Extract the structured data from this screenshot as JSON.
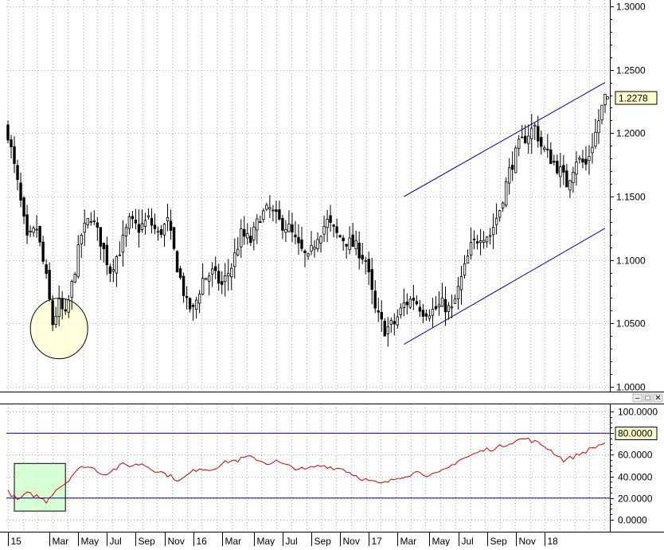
{
  "colors": {
    "background": "#ffffff",
    "grid": "#b9b9b9",
    "axis": "#000000",
    "candle_up_fill": "#ffffff",
    "candle_down_fill": "#000000",
    "candle_stroke": "#000000",
    "channel": "#0000aa",
    "rsi_line": "#cc0000",
    "rsi_levels": "#0000aa",
    "price_label_bg": "#ffffcc",
    "ellipse_fill": "#ffffcc",
    "rect_fill": "#ccffcc"
  },
  "pane_controls": [
    "–",
    "□",
    "✕"
  ],
  "chart_data": [
    {
      "type": "candlestick",
      "name": "price",
      "ylim": [
        1.0,
        1.3
      ],
      "y_ticks": [
        "1.3000",
        "1.2500",
        "1.2000",
        "1.1500",
        "1.1000",
        "1.0500",
        "1.0000"
      ],
      "y_tick_values": [
        1.3,
        1.25,
        1.2,
        1.15,
        1.1,
        1.05,
        1.0
      ],
      "last_price_label": "1.2278",
      "last_price": 1.2278,
      "grid": true,
      "anchors": [
        [
          0,
          1.2
        ],
        [
          3,
          1.16
        ],
        [
          6,
          1.115
        ],
        [
          9,
          1.125
        ],
        [
          12,
          1.085
        ],
        [
          14,
          1.05
        ],
        [
          16,
          1.065
        ],
        [
          18,
          1.055
        ],
        [
          20,
          1.08
        ],
        [
          23,
          1.12
        ],
        [
          26,
          1.135
        ],
        [
          29,
          1.115
        ],
        [
          32,
          1.092
        ],
        [
          35,
          1.108
        ],
        [
          38,
          1.13
        ],
        [
          41,
          1.125
        ],
        [
          44,
          1.132
        ],
        [
          47,
          1.12
        ],
        [
          50,
          1.13
        ],
        [
          53,
          1.095
        ],
        [
          56,
          1.065
        ],
        [
          58,
          1.06
        ],
        [
          61,
          1.085
        ],
        [
          64,
          1.09
        ],
        [
          67,
          1.08
        ],
        [
          70,
          1.095
        ],
        [
          73,
          1.12
        ],
        [
          76,
          1.115
        ],
        [
          79,
          1.135
        ],
        [
          82,
          1.14
        ],
        [
          85,
          1.13
        ],
        [
          88,
          1.125
        ],
        [
          91,
          1.11
        ],
        [
          94,
          1.1
        ],
        [
          97,
          1.12
        ],
        [
          100,
          1.13
        ],
        [
          103,
          1.12
        ],
        [
          106,
          1.115
        ],
        [
          109,
          1.11
        ],
        [
          112,
          1.1
        ],
        [
          115,
          1.06
        ],
        [
          118,
          1.045
        ],
        [
          121,
          1.05
        ],
        [
          124,
          1.065
        ],
        [
          127,
          1.07
        ],
        [
          130,
          1.06
        ],
        [
          133,
          1.06
        ],
        [
          136,
          1.065
        ],
        [
          139,
          1.06
        ],
        [
          142,
          1.085
        ],
        [
          145,
          1.11
        ],
        [
          148,
          1.12
        ],
        [
          151,
          1.12
        ],
        [
          154,
          1.14
        ],
        [
          157,
          1.17
        ],
        [
          160,
          1.19
        ],
        [
          163,
          1.2
        ],
        [
          165,
          1.205
        ],
        [
          167,
          1.19
        ],
        [
          170,
          1.18
        ],
        [
          173,
          1.17
        ],
        [
          175,
          1.16
        ],
        [
          178,
          1.18
        ],
        [
          181,
          1.175
        ],
        [
          184,
          1.2
        ],
        [
          186,
          1.22
        ],
        [
          187,
          1.2278
        ]
      ],
      "channel_upper": [
        [
          124,
          1.15
        ],
        [
          187,
          1.24
        ]
      ],
      "channel_lower": [
        [
          124,
          1.0335
        ],
        [
          187,
          1.125
        ]
      ],
      "highlight_ellipse_center": [
        16,
        1.046
      ]
    },
    {
      "type": "line",
      "name": "RSI",
      "ylim": [
        -5,
        105
      ],
      "y_ticks": [
        "100.0000",
        "80.0000",
        "60.0000",
        "40.0000",
        "20.0000",
        "0.0000"
      ],
      "y_tick_values": [
        100,
        80,
        60,
        40,
        20,
        0
      ],
      "highlighted_tick": "80.0000",
      "levels": [
        80,
        20
      ],
      "grid": true,
      "anchors": [
        [
          0,
          26
        ],
        [
          3,
          18
        ],
        [
          6,
          24
        ],
        [
          9,
          22
        ],
        [
          12,
          17
        ],
        [
          15,
          28
        ],
        [
          18,
          34
        ],
        [
          21,
          44
        ],
        [
          24,
          50
        ],
        [
          27,
          47
        ],
        [
          30,
          42
        ],
        [
          33,
          46
        ],
        [
          36,
          51
        ],
        [
          39,
          50
        ],
        [
          42,
          52
        ],
        [
          45,
          47
        ],
        [
          48,
          44
        ],
        [
          51,
          40
        ],
        [
          54,
          36
        ],
        [
          57,
          43
        ],
        [
          60,
          48
        ],
        [
          63,
          46
        ],
        [
          66,
          50
        ],
        [
          69,
          54
        ],
        [
          72,
          55
        ],
        [
          75,
          58
        ],
        [
          78,
          56
        ],
        [
          81,
          52
        ],
        [
          84,
          54
        ],
        [
          87,
          50
        ],
        [
          90,
          48
        ],
        [
          93,
          46
        ],
        [
          96,
          49
        ],
        [
          99,
          50
        ],
        [
          102,
          48
        ],
        [
          105,
          47
        ],
        [
          108,
          42
        ],
        [
          111,
          38
        ],
        [
          114,
          35
        ],
        [
          117,
          33
        ],
        [
          120,
          36
        ],
        [
          123,
          40
        ],
        [
          126,
          42
        ],
        [
          129,
          45
        ],
        [
          132,
          40
        ],
        [
          135,
          43
        ],
        [
          138,
          48
        ],
        [
          141,
          55
        ],
        [
          144,
          58
        ],
        [
          147,
          62
        ],
        [
          150,
          65
        ],
        [
          153,
          66
        ],
        [
          156,
          70
        ],
        [
          159,
          73
        ],
        [
          162,
          75
        ],
        [
          165,
          72
        ],
        [
          168,
          68
        ],
        [
          171,
          62
        ],
        [
          174,
          55
        ],
        [
          177,
          58
        ],
        [
          180,
          62
        ],
        [
          183,
          66
        ],
        [
          186,
          70
        ],
        [
          187,
          71
        ]
      ],
      "highlight_rect": {
        "from_bar": 2,
        "to_bar": 18,
        "low": 8,
        "high": 52
      }
    }
  ],
  "x_axis": {
    "bars": 188,
    "labels": [
      {
        "text": "15",
        "bar": 0
      },
      {
        "text": "Mar",
        "bar": 13
      },
      {
        "text": "May",
        "bar": 22
      },
      {
        "text": "Jul",
        "bar": 31
      },
      {
        "text": "Sep",
        "bar": 40
      },
      {
        "text": "Nov",
        "bar": 49
      },
      {
        "text": "16",
        "bar": 58
      },
      {
        "text": "Mar",
        "bar": 67
      },
      {
        "text": "May",
        "bar": 77
      },
      {
        "text": "Jul",
        "bar": 86
      },
      {
        "text": "Sep",
        "bar": 95
      },
      {
        "text": "Nov",
        "bar": 104
      },
      {
        "text": "17",
        "bar": 113
      },
      {
        "text": "Mar",
        "bar": 122
      },
      {
        "text": "May",
        "bar": 132
      },
      {
        "text": "Jul",
        "bar": 141
      },
      {
        "text": "Sep",
        "bar": 150
      },
      {
        "text": "Nov",
        "bar": 159
      },
      {
        "text": "18",
        "bar": 168
      }
    ]
  }
}
